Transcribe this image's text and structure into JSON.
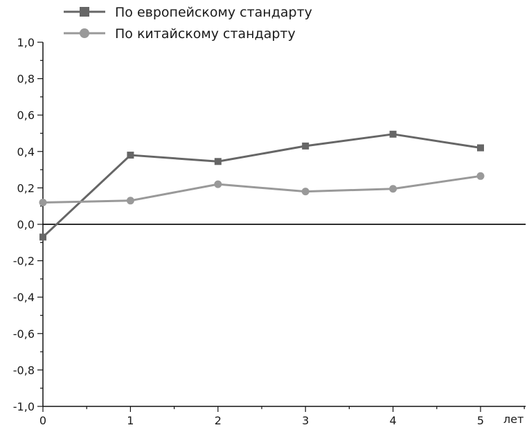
{
  "chart_data": {
    "type": "line",
    "x": [
      0,
      1,
      2,
      3,
      4,
      5
    ],
    "xlim": [
      0,
      5.5
    ],
    "ylim": [
      -1.0,
      1.0
    ],
    "x_ticks": [
      "0",
      "1",
      "2",
      "3",
      "4",
      "5"
    ],
    "y_ticks": [
      "1,0",
      "0,8",
      "0,6",
      "0,4",
      "0,2",
      "0,0",
      "-0,2",
      "-0,4",
      "-0,6",
      "-0,8",
      "-1,0"
    ],
    "x_unit": "лет",
    "legend_position": "top-left",
    "series": [
      {
        "name": "По европейскому стандарту",
        "marker": "square",
        "color": "#666666",
        "values": [
          -0.07,
          0.38,
          0.345,
          0.43,
          0.495,
          0.42
        ]
      },
      {
        "name": "По китайскому стандарту",
        "marker": "circle",
        "color": "#999999",
        "values": [
          0.12,
          0.13,
          0.22,
          0.18,
          0.195,
          0.265
        ]
      }
    ]
  }
}
